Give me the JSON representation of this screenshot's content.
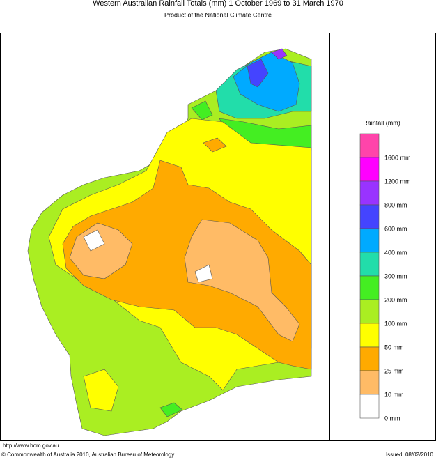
{
  "header": {
    "title": "Western Australian Rainfall Totals (mm) 1 October 1969 to 31 March 1970",
    "subtitle": "Product of the National Climate Centre"
  },
  "legend": {
    "title": "Rainfall (mm)",
    "items": [
      {
        "label": "1600 mm",
        "color": "#ff44aa"
      },
      {
        "label": "1200 mm",
        "color": "#ff00ff"
      },
      {
        "label": "800 mm",
        "color": "#9933ff"
      },
      {
        "label": "600 mm",
        "color": "#4444ff"
      },
      {
        "label": "400 mm",
        "color": "#00aaff"
      },
      {
        "label": "300 mm",
        "color": "#22ddaa"
      },
      {
        "label": "200 mm",
        "color": "#44ee22"
      },
      {
        "label": "100 mm",
        "color": "#aaee22"
      },
      {
        "label": "50 mm",
        "color": "#ffff00"
      },
      {
        "label": "25 mm",
        "color": "#ffaa00"
      },
      {
        "label": "10 mm",
        "color": "#ffbb66"
      },
      {
        "label": "0 mm",
        "color": "#ffffff"
      }
    ]
  },
  "footer": {
    "url": "http://www.bom.gov.au",
    "copyright": "© Commonwealth of Australia 2010, Australian Bureau of Meteorology",
    "issued": "Issued: 08/02/2010"
  }
}
